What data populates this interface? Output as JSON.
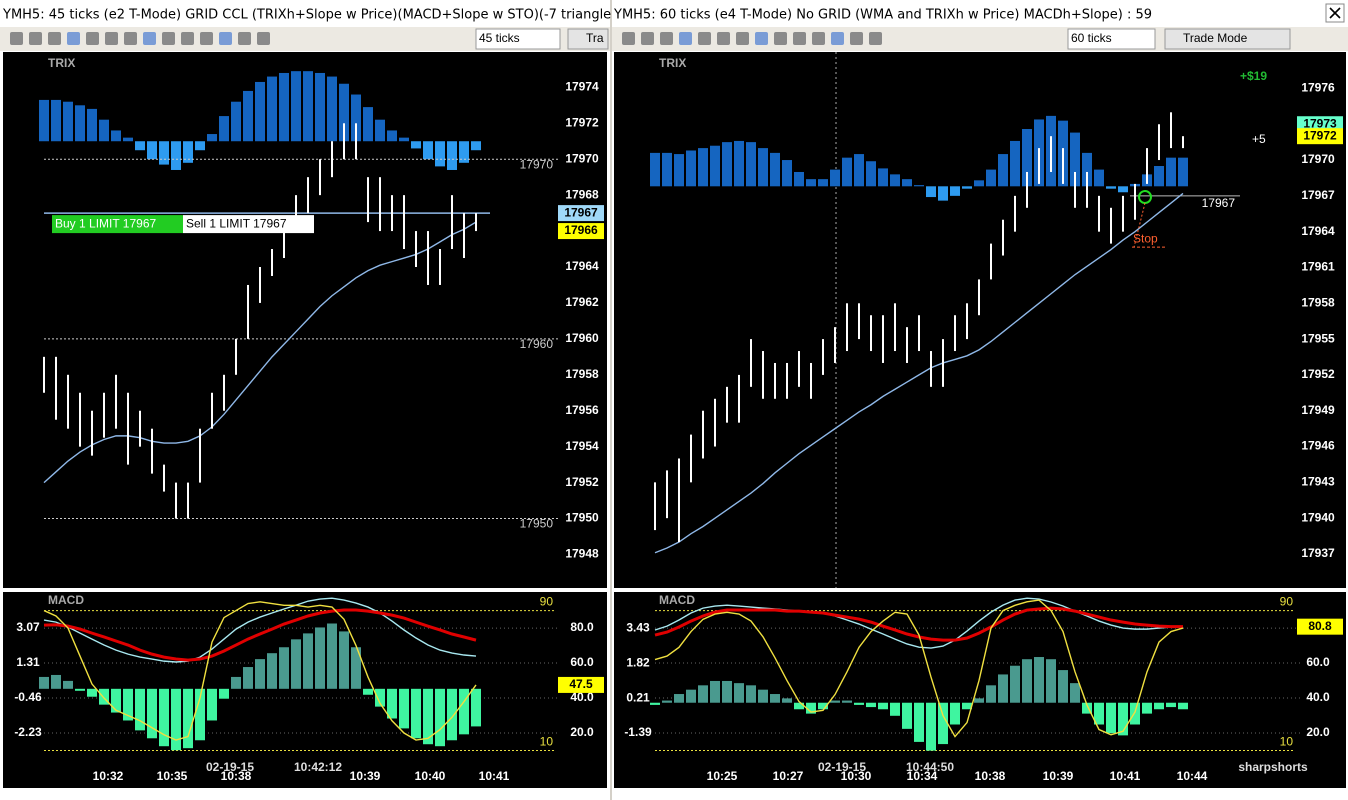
{
  "windows": [
    {
      "title": "YMH5: 45 ticks (e2 T-Mode) GRID CCL (TRIXh+Slope w Price)(MACD+Slope w STO)(-7 triangle",
      "toolbar": {
        "interval": "45 ticks",
        "mode": "Tra"
      },
      "price_panel": {
        "label": "TRIX",
        "ylim": [
          17946.3,
          17975.8
        ],
        "yticks": [
          17948,
          17950,
          17952,
          17954,
          17956,
          17958,
          17960,
          17962,
          17964,
          17966,
          17968,
          17970,
          17972,
          17974
        ],
        "bar_color": "#ffffff",
        "ma_color": "#8fb8e8",
        "bars": {
          "high": [
            17959,
            17959,
            17958,
            17957,
            17956,
            17957,
            17958,
            17957,
            17956,
            17955,
            17953,
            17952,
            17952,
            17955,
            17957,
            17958,
            17960,
            17963,
            17964,
            17965,
            17966,
            17968,
            17969,
            17970,
            17971,
            17972,
            17972,
            17969,
            17969,
            17968,
            17968,
            17966,
            17966,
            17965,
            17968,
            17967,
            17967
          ],
          "low": [
            17957,
            17955.5,
            17955,
            17954,
            17953.5,
            17954.5,
            17955,
            17953,
            17954,
            17952.5,
            17951.5,
            17950,
            17950,
            17952,
            17955,
            17956,
            17958,
            17960,
            17962,
            17963.5,
            17964.5,
            17966,
            17967,
            17968,
            17969,
            17970,
            17970,
            17966.5,
            17966,
            17966,
            17965,
            17964,
            17963,
            17963,
            17965,
            17964.5,
            17966
          ]
        },
        "ma": [
          17952.0,
          17952.6,
          17953.2,
          17953.7,
          17954.1,
          17954.4,
          17954.6,
          17954.6,
          17954.5,
          17954.3,
          17954.2,
          17954.2,
          17954.3,
          17954.6,
          17955.1,
          17955.8,
          17956.6,
          17957.4,
          17958.2,
          17959.0,
          17959.7,
          17960.4,
          17961.1,
          17961.8,
          17962.4,
          17962.9,
          17963.4,
          17963.8,
          17964.1,
          17964.3,
          17964.5,
          17964.7,
          17965.0,
          17965.4,
          17965.8,
          17966.1,
          17966.5
        ],
        "trix": {
          "baseline": 17971,
          "pos_color": "#1565c0",
          "neg_color": "#2e9bf0",
          "values": [
            17973.3,
            17973.3,
            17973.2,
            17973.0,
            17972.8,
            17972.2,
            17971.6,
            17971.2,
            17970.5,
            17970.0,
            17969.7,
            17969.4,
            17969.8,
            17970.5,
            17971.4,
            17972.4,
            17973.2,
            17973.8,
            17974.3,
            17974.6,
            17974.8,
            17974.9,
            17974.9,
            17974.8,
            17974.6,
            17974.2,
            17973.6,
            17972.9,
            17972.2,
            17971.6,
            17971.2,
            17970.6,
            17970.0,
            17969.6,
            17969.4,
            17969.8,
            17970.5
          ]
        },
        "levels": [
          17970,
          17960,
          17950
        ],
        "order": {
          "price": 17967,
          "buy": "Buy 1 LIMIT 17967",
          "sell": "Sell 1 LIMIT 17967"
        },
        "price_tags": [
          {
            "value": 17967,
            "color": "#9fd8f8"
          },
          {
            "value": 17966,
            "color": "#ffff00"
          }
        ]
      },
      "macd_panel": {
        "label": "MACD",
        "ylim": [
          -4.86,
          4.74
        ],
        "yticks": [
          3.07,
          1.31,
          -0.46,
          -2.23
        ],
        "y2lim": [
          -9.7,
          98.9
        ],
        "y2ticks": [
          {
            "value": 80,
            "label": "80.0"
          },
          {
            "value": 60,
            "label": "60.0"
          },
          {
            "value": 40,
            "label": "40.0"
          },
          {
            "value": 20,
            "label": "20.0"
          }
        ],
        "levels": [
          90,
          10
        ],
        "histogram": {
          "pos_color": "#4a9a8f",
          "neg_color": "#3ff5a0",
          "values": [
            0.6,
            0.7,
            0.4,
            -0.1,
            -0.4,
            -0.8,
            -1.2,
            -1.6,
            -2.1,
            -2.5,
            -2.9,
            -3.1,
            -3.0,
            -2.6,
            -1.6,
            -0.5,
            0.6,
            1.1,
            1.5,
            1.8,
            2.1,
            2.5,
            2.8,
            3.1,
            3.3,
            2.9,
            2.1,
            -0.3,
            -0.9,
            -1.5,
            -2.0,
            -2.5,
            -2.8,
            -2.9,
            -2.6,
            -2.3,
            -1.9
          ]
        },
        "series": [
          {
            "color": "#a8e8f0",
            "axis": "y2",
            "values": [
              84.6,
              83.4,
              80.6,
              77.1,
              73.7,
              70.3,
              67.4,
              65.1,
              63.4,
              62.3,
              61.1,
              60.6,
              61.1,
              63.4,
              68.0,
              73.7,
              79.4,
              83.4,
              86.3,
              88.6,
              90.9,
              93.1,
              95.4,
              96.6,
              97.1,
              96.0,
              94.3,
              92.0,
              88.6,
              84.0,
              78.9,
              74.3,
              70.3,
              67.4,
              65.7,
              64.6,
              64.0
            ]
          },
          {
            "color": "#e00000",
            "axis": "y2",
            "values": [
              81.7,
              81.9,
              81.1,
              79.4,
              77.1,
              74.9,
              72.6,
              70.3,
              67.4,
              65.1,
              63.4,
              62.3,
              61.7,
              62.3,
              64.0,
              66.9,
              70.3,
              73.7,
              76.6,
              79.4,
              82.3,
              84.6,
              86.9,
              88.6,
              89.7,
              90.3,
              90.3,
              89.7,
              88.6,
              87.4,
              85.7,
              83.4,
              81.1,
              78.9,
              76.6,
              74.9,
              73.1
            ]
          },
          {
            "color": "#f0e040",
            "axis": "y2",
            "values": [
              90,
              86.9,
              80,
              64,
              48,
              40,
              33,
              30,
              27,
              23,
              19,
              16,
              18,
              40,
              72,
              86,
              90,
              94,
              95,
              94,
              93,
              93,
              92,
              93,
              92,
              85,
              70,
              52,
              37,
              27,
              20,
              16,
              17,
              22,
              29,
              38,
              47.5
            ]
          }
        ],
        "tag": {
          "value": 47.5,
          "color": "#ffff00"
        }
      },
      "time_labels": [
        "10:32",
        "10:35",
        "10:38",
        "10:39",
        "10:40",
        "10:41"
      ],
      "timestamp": {
        "date": "02-19-15",
        "time": "10:42:12"
      }
    },
    {
      "title": "YMH5: 60 ticks (e4 T-Mode) No GRID (WMA and TRIXh w Price) MACDh+Slope) : 59",
      "toolbar": {
        "interval": "60 ticks",
        "mode": "Trade Mode"
      },
      "price_panel": {
        "label": "TRIX",
        "ylim": [
          17934.4,
          17978.8
        ],
        "yticks": [
          17937,
          17940,
          17943,
          17946,
          17949,
          17952,
          17955,
          17958,
          17961,
          17964,
          17967,
          17970,
          17973,
          17976
        ],
        "bar_color": "#ffffff",
        "ma_color": "#8fb8e8",
        "bars": {
          "high": [
            17943,
            17944,
            17945,
            17947,
            17949,
            17950,
            17951,
            17952,
            17955,
            17954,
            17953,
            17953,
            17954,
            17953,
            17955,
            17956,
            17958,
            17958,
            17957,
            17957,
            17958,
            17956,
            17957,
            17954,
            17955,
            17957,
            17958,
            17960,
            17963,
            17965,
            17967,
            17969,
            17971,
            17972,
            17971,
            17969,
            17969,
            17967,
            17966,
            17967,
            17968,
            17971,
            17973,
            17974,
            17972
          ],
          "low": [
            17939,
            17940,
            17938,
            17943,
            17945,
            17946,
            17948,
            17948,
            17951,
            17950,
            17950,
            17950,
            17951,
            17950,
            17952,
            17953,
            17954,
            17955,
            17954,
            17953,
            17954,
            17953,
            17954,
            17951,
            17951,
            17954,
            17955,
            17957,
            17960,
            17962,
            17964,
            17966,
            17968,
            17969,
            17968,
            17966,
            17966,
            17964,
            17963,
            17964,
            17965,
            17968,
            17970,
            17971,
            17971
          ]
        },
        "ma": [
          17937.1,
          17937.5,
          17938.0,
          17938.7,
          17939.3,
          17940.0,
          17940.7,
          17941.4,
          17942.1,
          17942.9,
          17943.8,
          17944.6,
          17945.4,
          17946.1,
          17946.8,
          17947.5,
          17948.2,
          17948.9,
          17949.5,
          17950.2,
          17950.8,
          17951.4,
          17952.0,
          17952.6,
          17953.0,
          17953.3,
          17953.6,
          17954.1,
          17954.8,
          17955.6,
          17956.4,
          17957.2,
          17958.0,
          17958.8,
          17959.6,
          17960.4,
          17961.1,
          17961.8,
          17962.5,
          17963.3,
          17964.0,
          17964.8,
          17965.6,
          17966.4,
          17967.2
        ],
        "trix": {
          "baseline": 17967.8,
          "pos_color": "#1565c0",
          "neg_color": "#2e9bf0",
          "values": [
            17970.6,
            17970.6,
            17970.5,
            17970.8,
            17971.0,
            17971.2,
            17971.5,
            17971.6,
            17971.5,
            17971.0,
            17970.6,
            17970.0,
            17969.0,
            17968.4,
            17968.4,
            17969.2,
            17970.2,
            17970.5,
            17969.9,
            17969.3,
            17968.8,
            17968.4,
            17967.9,
            17966.9,
            17966.6,
            17967.0,
            17967.6,
            17968.3,
            17969.2,
            17970.5,
            17971.6,
            17972.6,
            17973.4,
            17973.7,
            17973.3,
            17972.3,
            17970.6,
            17969.2,
            17967.6,
            17967.3,
            17968.0,
            17968.8,
            17969.5,
            17970.2,
            17970.2
          ]
        },
        "levels": [
          17967
        ],
        "stop": {
          "label": "Stop",
          "value": 17962.7
        },
        "pnl": "+$19",
        "pnl_ticks": "+5",
        "price_tags": [
          {
            "value": 17973,
            "color": "#66ffcc"
          },
          {
            "value": 17972,
            "color": "#ffff00"
          }
        ]
      },
      "macd_panel": {
        "label": "MACD",
        "ylim": [
          -3.78,
          4.95
        ],
        "yticks": [
          3.43,
          1.82,
          0.21,
          -1.39
        ],
        "y2lim": [
          -9.7,
          98.9
        ],
        "y2ticks": [
          {
            "value": 80,
            "label": "80.0"
          },
          {
            "value": 60,
            "label": "60.0"
          },
          {
            "value": 40,
            "label": "40.0"
          },
          {
            "value": 20,
            "label": "20.0"
          }
        ],
        "levels": [
          90,
          10
        ],
        "histogram": {
          "pos_color": "#4a9a8f",
          "neg_color": "#3ff5a0",
          "values": [
            -0.1,
            0.1,
            0.4,
            0.6,
            0.8,
            1.0,
            1.0,
            0.9,
            0.8,
            0.6,
            0.4,
            0.2,
            -0.3,
            -0.5,
            -0.3,
            0.1,
            0.1,
            -0.1,
            -0.2,
            -0.3,
            -0.6,
            -1.2,
            -1.8,
            -2.2,
            -1.9,
            -1.0,
            -0.3,
            0.2,
            0.8,
            1.3,
            1.7,
            2.0,
            2.1,
            2.0,
            1.5,
            0.9,
            -0.5,
            -1.0,
            -1.4,
            -1.5,
            -1.0,
            -0.5,
            -0.3,
            -0.2,
            -0.3
          ]
        },
        "series": [
          {
            "color": "#a8e8f0",
            "axis": "y2",
            "values": [
              78.9,
              81.1,
              84.6,
              88.6,
              91.4,
              92.6,
              93.1,
              92.6,
              92.0,
              91.4,
              90.9,
              90.3,
              89.7,
              89.1,
              88.6,
              86.9,
              84.6,
              82.3,
              79.4,
              76.6,
              73.7,
              70.9,
              69.1,
              68.6,
              69.7,
              73.1,
              78.3,
              84.0,
              89.1,
              93.1,
              96.0,
              97.1,
              96.6,
              94.9,
              92.6,
              89.7,
              86.9,
              84.0,
              81.7,
              80.0,
              79.4,
              79.4,
              80.0,
              80.6,
              80.8
            ]
          },
          {
            "color": "#e00000",
            "axis": "y2",
            "values": [
              76.0,
              77.7,
              80.6,
              84.0,
              86.9,
              89.1,
              90.3,
              90.3,
              90.3,
              90.3,
              90.3,
              89.7,
              89.7,
              89.1,
              88.6,
              87.4,
              86.3,
              85.1,
              83.4,
              81.1,
              78.9,
              76.6,
              74.9,
              73.7,
              73.1,
              73.1,
              74.3,
              77.1,
              80.6,
              84.6,
              88.0,
              90.3,
              90.9,
              91.4,
              90.9,
              89.7,
              88.0,
              86.3,
              84.6,
              83.4,
              82.3,
              81.7,
              81.1,
              80.8,
              80.8
            ]
          },
          {
            "color": "#f0e040",
            "axis": "y2",
            "values": [
              62,
              64,
              69,
              78,
              85,
              88,
              89,
              88,
              84,
              75,
              63,
              50,
              38,
              32,
              33,
              42,
              55,
              69,
              78,
              84,
              89,
              88,
              76,
              52,
              30,
              18,
              26,
              50,
              80,
              90,
              93,
              95,
              96,
              90,
              78,
              55,
              36,
              22,
              19,
              21,
              32,
              55,
              72,
              78,
              80
            ]
          }
        ],
        "tag": {
          "value": 80.8,
          "color": "#ffff00"
        }
      },
      "time_labels": [
        "10:25",
        "10:27",
        "10:30",
        "10:34",
        "10:38",
        "10:39",
        "10:41",
        "10:44"
      ],
      "timestamp": {
        "date": "02-19-15",
        "time": "10:44:50"
      },
      "watermark": "sharpshorts"
    }
  ]
}
